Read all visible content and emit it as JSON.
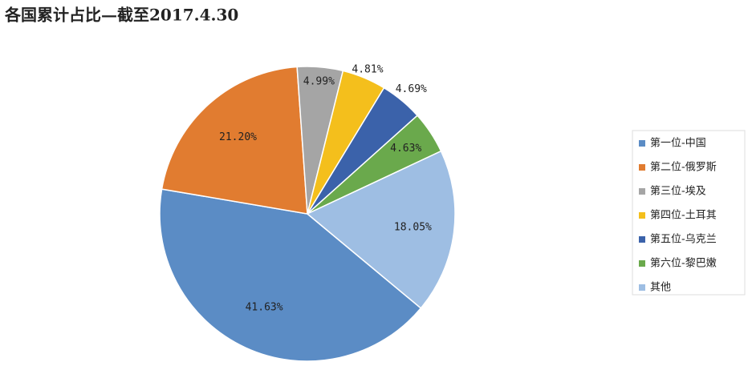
{
  "chart_data": {
    "type": "pie",
    "title": "各国累计占比—截至2017.4.30",
    "categories": [
      "第一位-中国",
      "第二位-俄罗斯",
      "第三位-埃及",
      "第四位-土耳其",
      "第五位-乌克兰",
      "第六位-黎巴嫩",
      "其他"
    ],
    "values": [
      41.63,
      21.2,
      4.99,
      4.81,
      4.69,
      4.63,
      18.05
    ],
    "value_labels": [
      "41.63%",
      "21.20%",
      "4.99%",
      "4.81%",
      "4.69%",
      "4.63%",
      "18.05%"
    ],
    "colors": [
      "#5b8cc5",
      "#e17c30",
      "#a5a5a5",
      "#f4bf1c",
      "#3b62aa",
      "#6aa94c",
      "#9ebee3"
    ],
    "legend": "right"
  }
}
